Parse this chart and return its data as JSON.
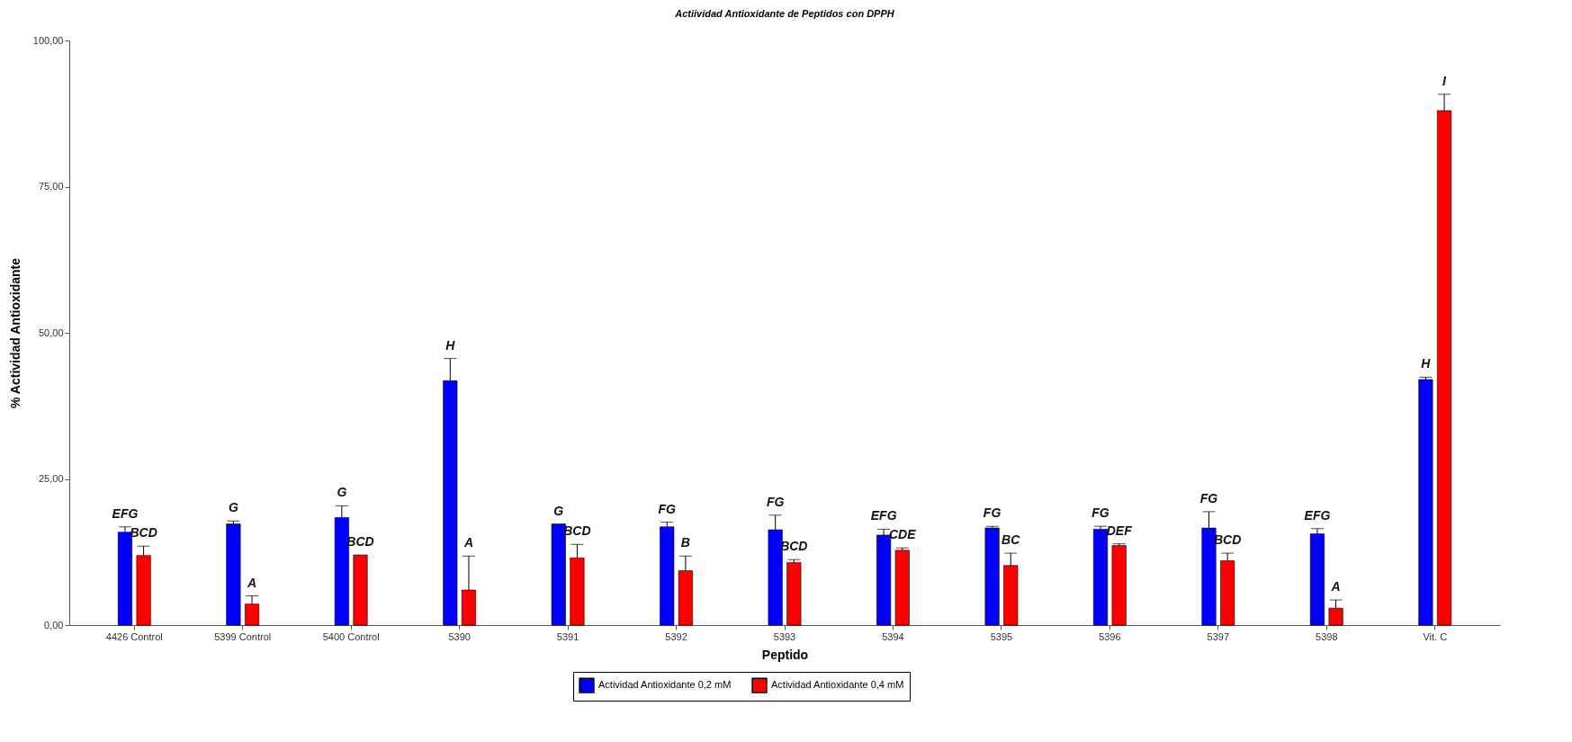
{
  "chart_data": {
    "type": "bar",
    "title": "Actiividad Antioxidante de Peptidos con DPPH",
    "xlabel": "Peptido",
    "ylabel": "% Actividad Antioxidante",
    "categories": [
      "4426 Control",
      "5399 Control",
      "5400 Control",
      "5390",
      "5391",
      "5392",
      "5393",
      "5394",
      "5395",
      "5396",
      "5397",
      "5398",
      "Vit. C"
    ],
    "series": [
      {
        "name": "Actividad Antioxidante 0,2 mM",
        "color": "#0000ff",
        "values": [
          15.9,
          17.3,
          18.4,
          41.8,
          17.3,
          16.8,
          16.3,
          15.4,
          16.6,
          16.4,
          16.6,
          15.6,
          42.0
        ],
        "errors": [
          [
            15.9,
            16.8
          ],
          [
            17.3,
            17.8
          ],
          [
            18.4,
            20.4
          ],
          [
            41.8,
            45.6
          ],
          null,
          [
            16.8,
            17.6
          ],
          [
            16.3,
            18.8
          ],
          [
            15.4,
            16.4
          ],
          [
            16.6,
            16.9
          ],
          [
            16.4,
            16.9
          ],
          [
            16.6,
            19.4
          ],
          [
            15.6,
            16.5
          ],
          [
            42.0,
            42.4
          ]
        ],
        "value_labels": [
          "EFG",
          "G",
          "G",
          "H",
          "G",
          "FG",
          "FG",
          "EFG",
          "FG",
          "FG",
          "FG",
          "EFG",
          "H"
        ]
      },
      {
        "name": "Actividad Antioxidante 0,4 mM",
        "color": "#ff0000",
        "values": [
          11.9,
          3.6,
          12.0,
          6.0,
          11.5,
          9.3,
          10.7,
          12.8,
          10.2,
          13.6,
          11.0,
          2.9,
          88.0
        ],
        "errors": [
          [
            11.9,
            13.5
          ],
          [
            3.6,
            5.0
          ],
          null,
          [
            6.0,
            11.8
          ],
          [
            11.5,
            13.8
          ],
          [
            9.3,
            11.8
          ],
          [
            10.7,
            11.2
          ],
          [
            12.8,
            13.2
          ],
          [
            10.2,
            12.3
          ],
          [
            13.6,
            13.9
          ],
          [
            11.0,
            12.3
          ],
          [
            2.9,
            4.3
          ],
          [
            88.0,
            90.8
          ]
        ],
        "value_labels": [
          "BCD",
          "A",
          "BCD",
          "A",
          "BCD",
          "B",
          "BCD",
          "CDE",
          "BC",
          "DEF",
          "BCD",
          "A",
          "I"
        ]
      }
    ],
    "ylim": [
      0,
      100
    ],
    "yticks": [
      {
        "value": 0,
        "label": "0,00"
      },
      {
        "value": 25,
        "label": "25,00"
      },
      {
        "value": 50,
        "label": "50,00"
      },
      {
        "value": 75,
        "label": "75,00"
      },
      {
        "value": 100,
        "label": "100,00"
      }
    ],
    "legend": "bottom",
    "grid": false
  }
}
